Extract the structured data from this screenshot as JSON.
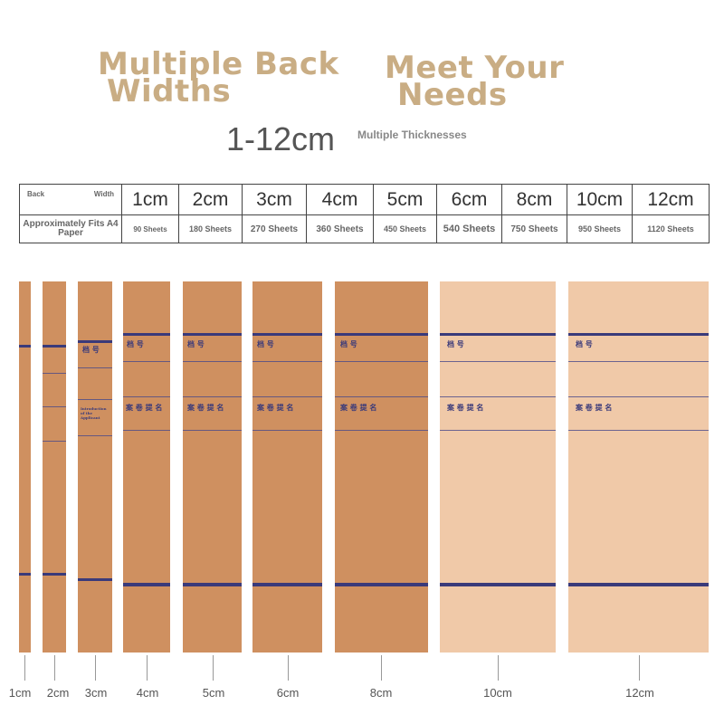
{
  "header": {
    "title_left_line1": "Multiple Back",
    "title_left_line2": "Widths",
    "title_right_line1": "Meet Your",
    "title_right_line2": "Needs",
    "range": "1-12cm",
    "thicknesses": "Multiple Thicknesses"
  },
  "spec_table": {
    "back_label": "Back",
    "width_label": "Width",
    "fits_label": "Approximately Fits A4 Paper",
    "widths": [
      "1cm",
      "2cm",
      "3cm",
      "4cm",
      "5cm",
      "6cm",
      "8cm",
      "10cm",
      "12cm"
    ],
    "sheets": [
      "90 Sheets",
      "180 Sheets",
      "270 Sheets",
      "360 Sheets",
      "450 Sheets",
      "540 Sheets",
      "750 Sheets",
      "950 Sheets",
      "1120 Sheets"
    ]
  },
  "spines": {
    "label_file_no": "档 号",
    "label_title": "案 卷 提 名",
    "label_small": "Introduction of the Applicant",
    "widths": [
      "1cm",
      "2cm",
      "3cm",
      "4cm",
      "5cm",
      "6cm",
      "8cm",
      "10cm",
      "12cm"
    ]
  },
  "colors": {
    "kraft": "#cf9060",
    "kraft_light": "#f0c9a8",
    "ink": "#3a3a7a",
    "headline": "#c9ad84"
  }
}
